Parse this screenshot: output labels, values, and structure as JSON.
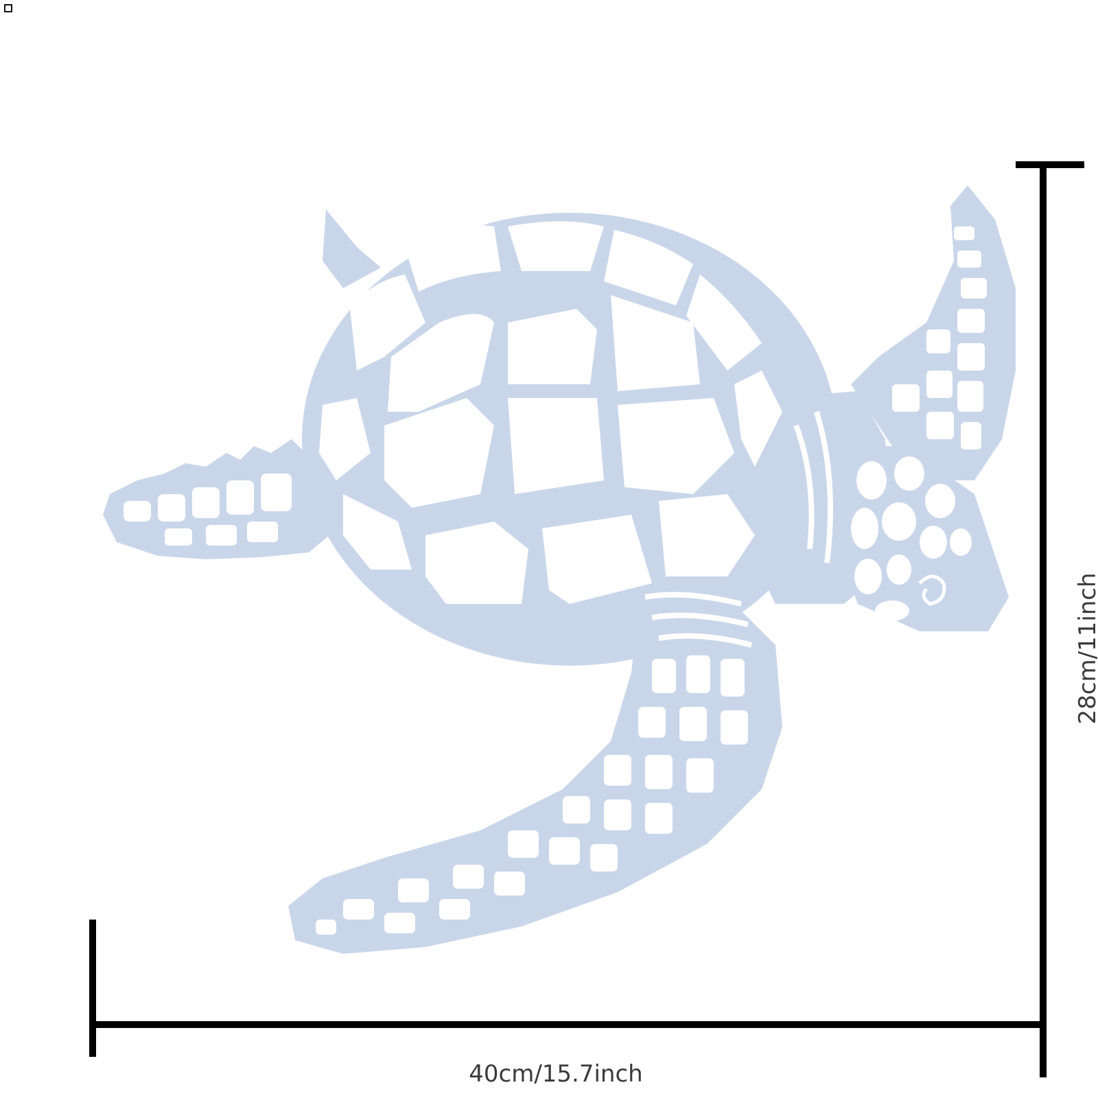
{
  "dimensions": {
    "width_label": "40cm/15.7inch",
    "height_label": "28cm/11inch"
  },
  "colors": {
    "background": "#ffffff",
    "artwork": "#c9d6ea",
    "artwork_shade": "#b7c6dd",
    "measure_line": "#000000",
    "label_text": "#3a3a3a"
  },
  "icons": {
    "artwork": "sea-turtle-icon",
    "corner": "square-icon"
  }
}
